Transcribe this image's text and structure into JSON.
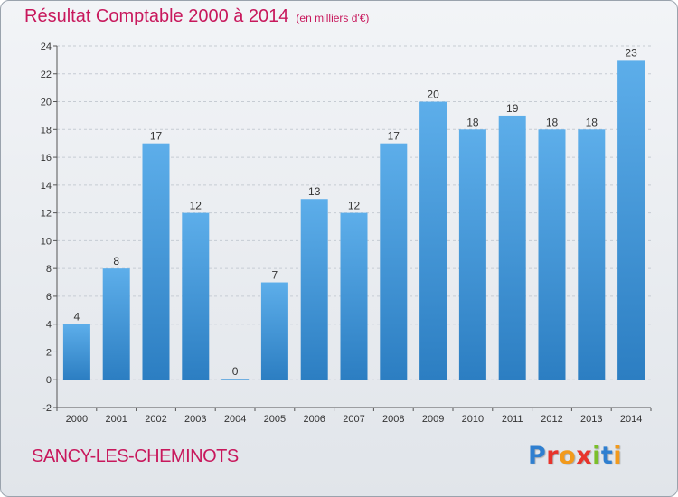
{
  "title": "Résultat Comptable 2000 à 2014",
  "subtitle": "(en milliers d'€)",
  "town": "SANCY-LES-CHEMINOTS",
  "brand": {
    "text": "Proxiti",
    "colors": [
      "#2f7fd0",
      "#e8342c",
      "#f29a1c",
      "#e8342c",
      "#7bbf2a",
      "#2f7fd0",
      "#f29a1c"
    ]
  },
  "colors": {
    "bar_top": "#5daeea",
    "bar_bottom": "#2c7ec2",
    "accent": "#c8185c"
  },
  "chart_data": {
    "type": "bar",
    "categories": [
      "2000",
      "2001",
      "2002",
      "2003",
      "2004",
      "2005",
      "2006",
      "2007",
      "2008",
      "2009",
      "2010",
      "2011",
      "2012",
      "2013",
      "2014"
    ],
    "values": [
      4,
      8,
      17,
      12,
      0,
      7,
      13,
      12,
      17,
      20,
      18,
      19,
      18,
      18,
      23
    ],
    "data_labels": [
      "4",
      "8",
      "17",
      "12",
      "0",
      "7",
      "13",
      "12",
      "17",
      "20",
      "18",
      "19",
      "18",
      "18",
      "23"
    ],
    "yticks": [
      "-2",
      "0",
      "2",
      "4",
      "6",
      "8",
      "10",
      "12",
      "14",
      "16",
      "18",
      "20",
      "22",
      "24"
    ],
    "ylim": [
      -2,
      24
    ],
    "grid": true
  }
}
